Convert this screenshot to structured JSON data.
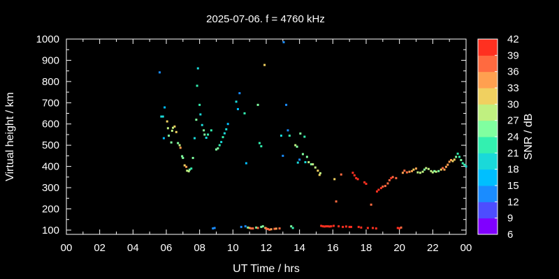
{
  "chart_data": {
    "type": "scatter",
    "title": "2025-07-06. f = 4760 kHz",
    "xlabel": "UT Time / hrs",
    "ylabel": "Virtual height / km",
    "xlim": [
      0,
      24
    ],
    "ylim": [
      80,
      1000
    ],
    "x_tick_labels": [
      "00",
      "02",
      "04",
      "06",
      "08",
      "10",
      "12",
      "14",
      "16",
      "18",
      "20",
      "22",
      "00"
    ],
    "y_tick_labels": [
      "100",
      "200",
      "300",
      "400",
      "500",
      "600",
      "700",
      "800",
      "900",
      "1000"
    ],
    "colorbar": {
      "label": "SNR / dB",
      "tick_labels": [
        "6",
        "9",
        "12",
        "15",
        "18",
        "21",
        "24",
        "27",
        "30",
        "33",
        "36",
        "39",
        "42"
      ],
      "range": [
        6,
        42
      ],
      "bands": [
        "#8000ff",
        "#4d4dff",
        "#1a8cff",
        "#00bfff",
        "#1ad9d9",
        "#33f0b0",
        "#80ffa0",
        "#c0f080",
        "#f0d060",
        "#ffa050",
        "#ff6a40",
        "#ff3020"
      ]
    },
    "points": [
      [
        5.6,
        843,
        12
      ],
      [
        5.7,
        635,
        20
      ],
      [
        5.8,
        635,
        20
      ],
      [
        5.85,
        533,
        16
      ],
      [
        5.9,
        678,
        15
      ],
      [
        6.05,
        612,
        31
      ],
      [
        6.1,
        580,
        27
      ],
      [
        6.15,
        545,
        26
      ],
      [
        6.3,
        513,
        26
      ],
      [
        6.35,
        568,
        29
      ],
      [
        6.4,
        582,
        28
      ],
      [
        6.5,
        588,
        30
      ],
      [
        6.6,
        562,
        30
      ],
      [
        6.7,
        510,
        26
      ],
      [
        6.8,
        500,
        27
      ],
      [
        6.85,
        488,
        33
      ],
      [
        6.95,
        448,
        26
      ],
      [
        7.0,
        440,
        24
      ],
      [
        7.1,
        405,
        31
      ],
      [
        7.2,
        398,
        33
      ],
      [
        7.25,
        380,
        27
      ],
      [
        7.35,
        377,
        27
      ],
      [
        7.4,
        385,
        24
      ],
      [
        7.5,
        390,
        23
      ],
      [
        7.6,
        440,
        24
      ],
      [
        7.7,
        533,
        20
      ],
      [
        7.8,
        620,
        25
      ],
      [
        7.85,
        780,
        22
      ],
      [
        7.9,
        862,
        20
      ],
      [
        8.0,
        690,
        22
      ],
      [
        8.05,
        645,
        18
      ],
      [
        8.15,
        595,
        19
      ],
      [
        8.25,
        570,
        24
      ],
      [
        8.3,
        550,
        24
      ],
      [
        8.4,
        535,
        20
      ],
      [
        8.5,
        550,
        22
      ],
      [
        8.7,
        570,
        21
      ],
      [
        8.8,
        108,
        14
      ],
      [
        8.9,
        110,
        12
      ],
      [
        9.0,
        480,
        24
      ],
      [
        9.1,
        485,
        24
      ],
      [
        9.2,
        500,
        22
      ],
      [
        9.3,
        515,
        20
      ],
      [
        9.4,
        538,
        21
      ],
      [
        9.5,
        556,
        20
      ],
      [
        9.6,
        575,
        19
      ],
      [
        9.7,
        600,
        16
      ],
      [
        10.2,
        705,
        18
      ],
      [
        10.3,
        670,
        16
      ],
      [
        10.4,
        745,
        14
      ],
      [
        10.5,
        115,
        12
      ],
      [
        10.7,
        650,
        21
      ],
      [
        10.75,
        118,
        14
      ],
      [
        10.8,
        415,
        17
      ],
      [
        10.9,
        112,
        24
      ],
      [
        11.0,
        110,
        33
      ],
      [
        11.1,
        108,
        38
      ],
      [
        11.2,
        108,
        37
      ],
      [
        11.4,
        112,
        24
      ],
      [
        11.5,
        110,
        36
      ],
      [
        11.5,
        690,
        26
      ],
      [
        11.6,
        510,
        21
      ],
      [
        11.7,
        495,
        21
      ],
      [
        11.7,
        115,
        24
      ],
      [
        11.8,
        118,
        26
      ],
      [
        11.9,
        878,
        32
      ],
      [
        11.95,
        110,
        30
      ],
      [
        12.0,
        108,
        36
      ],
      [
        12.1,
        105,
        37
      ],
      [
        12.2,
        102,
        38
      ],
      [
        12.3,
        104,
        34
      ],
      [
        12.5,
        106,
        38
      ],
      [
        12.6,
        107,
        34
      ],
      [
        12.8,
        108,
        36
      ],
      [
        12.9,
        545,
        20
      ],
      [
        13.0,
        450,
        13
      ],
      [
        13.05,
        985,
        14
      ],
      [
        13.2,
        690,
        14
      ],
      [
        13.3,
        570,
        12
      ],
      [
        13.4,
        545,
        22
      ],
      [
        13.5,
        118,
        26
      ],
      [
        13.6,
        110,
        22
      ],
      [
        13.75,
        500,
        27
      ],
      [
        13.85,
        493,
        24
      ],
      [
        13.9,
        418,
        20
      ],
      [
        14.0,
        432,
        12
      ],
      [
        14.05,
        555,
        24
      ],
      [
        14.2,
        458,
        24
      ],
      [
        14.3,
        540,
        22
      ],
      [
        14.35,
        420,
        18
      ],
      [
        14.45,
        445,
        24
      ],
      [
        14.55,
        420,
        27
      ],
      [
        14.7,
        410,
        26
      ],
      [
        14.8,
        410,
        27
      ],
      [
        14.95,
        395,
        27
      ],
      [
        15.1,
        380,
        30
      ],
      [
        15.2,
        360,
        30
      ],
      [
        15.25,
        368,
        29
      ],
      [
        15.3,
        120,
        39
      ],
      [
        15.4,
        118,
        40
      ],
      [
        15.5,
        117,
        40
      ],
      [
        15.6,
        118,
        41
      ],
      [
        15.7,
        118,
        42
      ],
      [
        15.8,
        117,
        40
      ],
      [
        15.9,
        118,
        41
      ],
      [
        16.05,
        120,
        40
      ],
      [
        16.1,
        340,
        30
      ],
      [
        16.2,
        235,
        36
      ],
      [
        16.35,
        118,
        39
      ],
      [
        16.5,
        362,
        38
      ],
      [
        16.6,
        115,
        40
      ],
      [
        16.8,
        117,
        41
      ],
      [
        17.0,
        115,
        40
      ],
      [
        17.1,
        115,
        41
      ],
      [
        17.2,
        370,
        39
      ],
      [
        17.3,
        358,
        40
      ],
      [
        17.4,
        345,
        41
      ],
      [
        17.5,
        340,
        41
      ],
      [
        17.55,
        115,
        39
      ],
      [
        17.7,
        112,
        40
      ],
      [
        17.9,
        325,
        40
      ],
      [
        18.0,
        318,
        41
      ],
      [
        18.1,
        110,
        40
      ],
      [
        18.3,
        220,
        37
      ],
      [
        18.4,
        110,
        39
      ],
      [
        18.6,
        108,
        41
      ],
      [
        18.65,
        282,
        41
      ],
      [
        18.75,
        290,
        40
      ],
      [
        18.9,
        298,
        39
      ],
      [
        19.0,
        305,
        38
      ],
      [
        19.15,
        308,
        37
      ],
      [
        19.3,
        320,
        38
      ],
      [
        19.4,
        335,
        37
      ],
      [
        19.5,
        345,
        40
      ],
      [
        19.6,
        350,
        38
      ],
      [
        19.8,
        345,
        37
      ],
      [
        19.9,
        110,
        40
      ],
      [
        20.0,
        108,
        39
      ],
      [
        20.1,
        112,
        38
      ],
      [
        20.2,
        370,
        34
      ],
      [
        20.3,
        380,
        36
      ],
      [
        20.45,
        372,
        37
      ],
      [
        20.6,
        375,
        33
      ],
      [
        20.75,
        378,
        34
      ],
      [
        20.85,
        385,
        31
      ],
      [
        21.0,
        390,
        33
      ],
      [
        21.1,
        372,
        28
      ],
      [
        21.25,
        370,
        27
      ],
      [
        21.4,
        375,
        28
      ],
      [
        21.5,
        385,
        26
      ],
      [
        21.6,
        392,
        27
      ],
      [
        21.75,
        388,
        27
      ],
      [
        21.9,
        378,
        28
      ],
      [
        22.0,
        372,
        29
      ],
      [
        22.1,
        378,
        26
      ],
      [
        22.2,
        375,
        27
      ],
      [
        22.35,
        378,
        26
      ],
      [
        22.5,
        385,
        32
      ],
      [
        22.6,
        392,
        36
      ],
      [
        22.7,
        385,
        34
      ],
      [
        22.8,
        398,
        33
      ],
      [
        22.9,
        408,
        34
      ],
      [
        23.0,
        422,
        35
      ],
      [
        23.1,
        430,
        33
      ],
      [
        23.2,
        425,
        31
      ],
      [
        23.3,
        432,
        30
      ],
      [
        23.4,
        445,
        26
      ],
      [
        23.5,
        460,
        23
      ],
      [
        23.6,
        445,
        22
      ],
      [
        23.7,
        430,
        24
      ],
      [
        23.8,
        415,
        23
      ],
      [
        23.9,
        408,
        21
      ],
      [
        24.0,
        400,
        20
      ]
    ]
  }
}
